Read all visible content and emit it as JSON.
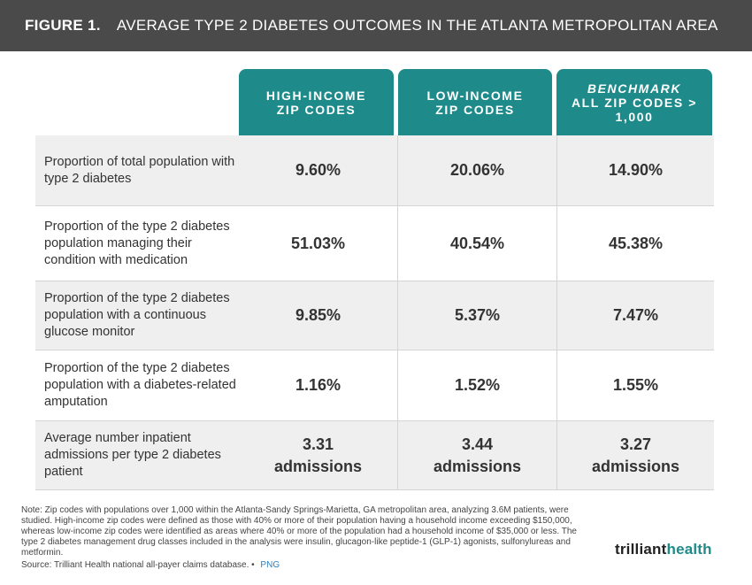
{
  "figure": {
    "label": "FIGURE 1.",
    "title": "AVERAGE TYPE 2 DIABETES OUTCOMES IN THE ATLANTA METROPOLITAN AREA"
  },
  "columns": [
    {
      "line1": "HIGH-INCOME",
      "line2": "ZIP CODES",
      "line3": ""
    },
    {
      "line1": "LOW-INCOME",
      "line2": "ZIP CODES",
      "line3": ""
    },
    {
      "line1": "BENCHMARK",
      "line2": "ALL ZIP CODES >",
      "line3": "1,000"
    }
  ],
  "rows": [
    {
      "label": "Proportion of total population with type 2 diabetes",
      "values": [
        "9.60%",
        "20.06%",
        "14.90%"
      ]
    },
    {
      "label": "Proportion of the type 2 diabetes population managing their condition with medication",
      "values": [
        "51.03%",
        "40.54%",
        "45.38%"
      ]
    },
    {
      "label": "Proportion of the type 2 diabetes population with a continuous glucose monitor",
      "values": [
        "9.85%",
        "5.37%",
        "7.47%"
      ]
    },
    {
      "label": "Proportion of the type 2 diabetes population with a diabetes-related amputation",
      "values": [
        "1.16%",
        "1.52%",
        "1.55%"
      ]
    },
    {
      "label": "Average number inpatient admissions per type 2 diabetes patient",
      "values": [
        "3.31",
        "3.44",
        "3.27"
      ],
      "unit": "admissions"
    }
  ],
  "note": "Note: Zip codes with populations over 1,000 within the Atlanta-Sandy Springs-Marietta, GA metropolitan area, analyzing 3.6M patients, were studied. High-income zip codes were defined as those with 40% or more of their population having a household income exceeding $150,000, whereas low-income zip codes were identified as areas where 40% or more of the population had a household income of $35,000 or less. The type 2 diabetes management drug classes included in the analysis were insulin, glucagon-like peptide-1 (GLP-1) agonists, sulfonylureas and metformin.",
  "source": "Source: Trilliant Health national all-payer claims database. •",
  "png_link": "PNG",
  "logo": {
    "part1": "trilliant",
    "part2": "health"
  },
  "colors": {
    "header_bg": "#4a4a4a",
    "column_header": "#1f8a8a",
    "row_shade": "#efefef"
  }
}
